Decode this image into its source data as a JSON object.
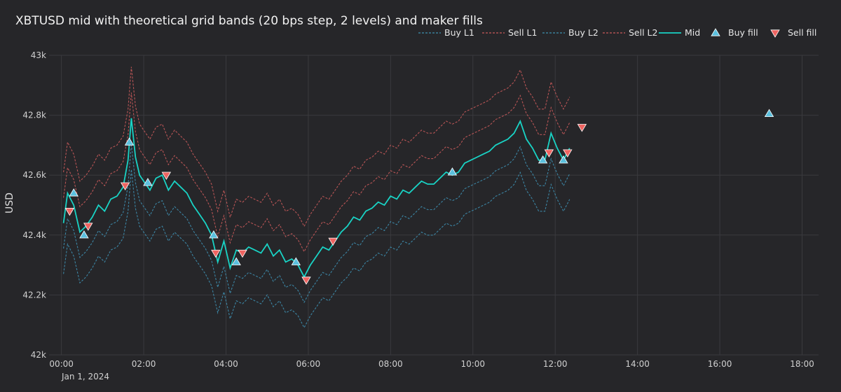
{
  "chart_data": {
    "type": "line",
    "title": "XBTUSD mid with theoretical grid bands (20 bps step, 2 levels) and maker fills",
    "xlabel": "",
    "ylabel": "USD",
    "x_ticks": [
      "00:00",
      "02:00",
      "04:00",
      "06:00",
      "08:00",
      "10:00",
      "12:00",
      "14:00",
      "16:00",
      "18:00"
    ],
    "x_tick_hours": [
      0,
      2,
      4,
      6,
      8,
      10,
      12,
      14,
      16,
      18
    ],
    "x_date_label": "Jan 1, 2024",
    "xlim_hours": [
      -0.3,
      18.4
    ],
    "ylim": [
      42000,
      43000
    ],
    "y_ticks": [
      42000,
      42200,
      42400,
      42600,
      42800,
      43000
    ],
    "y_tick_labels": [
      "42k",
      "42.2k",
      "42.4k",
      "42.6k",
      "42.8k",
      "43k"
    ],
    "grid": true,
    "legend_position": "top-right",
    "band_step_bps": 20,
    "levels": 2,
    "colors": {
      "mid": "#19d3c5",
      "buy_band": "#3e8fb0",
      "sell_band": "#c85a5a",
      "buy_fill": "#5bc0de",
      "sell_fill": "#ef6461"
    },
    "legend": [
      {
        "name": "Buy L1",
        "kind": "dash",
        "color": "#3e8fb0"
      },
      {
        "name": "Sell L1",
        "kind": "dash",
        "color": "#c85a5a"
      },
      {
        "name": "Buy L2",
        "kind": "dash",
        "color": "#3e8fb0"
      },
      {
        "name": "Sell L2",
        "kind": "dash",
        "color": "#c85a5a"
      },
      {
        "name": "Mid",
        "kind": "line",
        "color": "#19d3c5"
      },
      {
        "name": "Buy fill",
        "kind": "up",
        "color": "#5bc0de"
      },
      {
        "name": "Sell fill",
        "kind": "down",
        "color": "#ef6461"
      }
    ],
    "mid": {
      "x_hours": [
        0.05,
        0.15,
        0.3,
        0.45,
        0.6,
        0.75,
        0.9,
        1.05,
        1.2,
        1.35,
        1.5,
        1.62,
        1.7,
        1.8,
        1.9,
        2.0,
        2.15,
        2.3,
        2.45,
        2.6,
        2.75,
        2.9,
        3.05,
        3.2,
        3.35,
        3.5,
        3.65,
        3.8,
        3.95,
        4.1,
        4.25,
        4.4,
        4.55,
        4.7,
        4.85,
        5.0,
        5.15,
        5.3,
        5.45,
        5.6,
        5.75,
        5.9,
        6.05,
        6.2,
        6.35,
        6.5,
        6.65,
        6.8,
        6.95,
        7.1,
        7.25,
        7.4,
        7.55,
        7.7,
        7.85,
        8.0,
        8.15,
        8.3,
        8.45,
        8.6,
        8.75,
        8.9,
        9.05,
        9.2,
        9.35,
        9.5,
        9.65,
        9.8,
        9.95,
        10.1,
        10.25,
        10.4,
        10.55,
        10.7,
        10.85,
        11.0,
        11.15,
        11.3,
        11.45,
        11.6,
        11.75,
        11.9,
        12.05,
        12.2,
        12.35
      ],
      "values": [
        42440,
        42540,
        42500,
        42410,
        42430,
        42460,
        42500,
        42480,
        42520,
        42530,
        42560,
        42650,
        42790,
        42660,
        42600,
        42580,
        42550,
        42590,
        42600,
        42550,
        42580,
        42560,
        42540,
        42500,
        42470,
        42440,
        42400,
        42310,
        42380,
        42290,
        42350,
        42340,
        42360,
        42350,
        42340,
        42370,
        42330,
        42350,
        42310,
        42320,
        42300,
        42260,
        42300,
        42330,
        42360,
        42350,
        42380,
        42410,
        42430,
        42460,
        42450,
        42480,
        42490,
        42510,
        42500,
        42530,
        42520,
        42550,
        42540,
        42560,
        42580,
        42570,
        42570,
        42590,
        42610,
        42600,
        42610,
        42640,
        42650,
        42660,
        42670,
        42680,
        42700,
        42710,
        42720,
        42740,
        42780,
        42720,
        42690,
        42650,
        42650,
        42740,
        42690,
        42650,
        42690
      ]
    },
    "buy_fills": {
      "x_hours": [
        0.3,
        0.55,
        1.65,
        2.1,
        3.7,
        4.25,
        5.7,
        9.5,
        11.7,
        12.2,
        17.2
      ],
      "values": [
        42540,
        42400,
        42710,
        42575,
        42400,
        42310,
        42310,
        42610,
        42650,
        42650,
        42805
      ]
    },
    "sell_fills": {
      "x_hours": [
        0.2,
        0.65,
        1.55,
        2.55,
        3.75,
        4.4,
        5.95,
        6.6,
        11.85,
        12.3,
        12.65
      ],
      "values": [
        42480,
        42430,
        42565,
        42600,
        42340,
        42340,
        42250,
        42380,
        42675,
        42675,
        42760
      ]
    }
  }
}
